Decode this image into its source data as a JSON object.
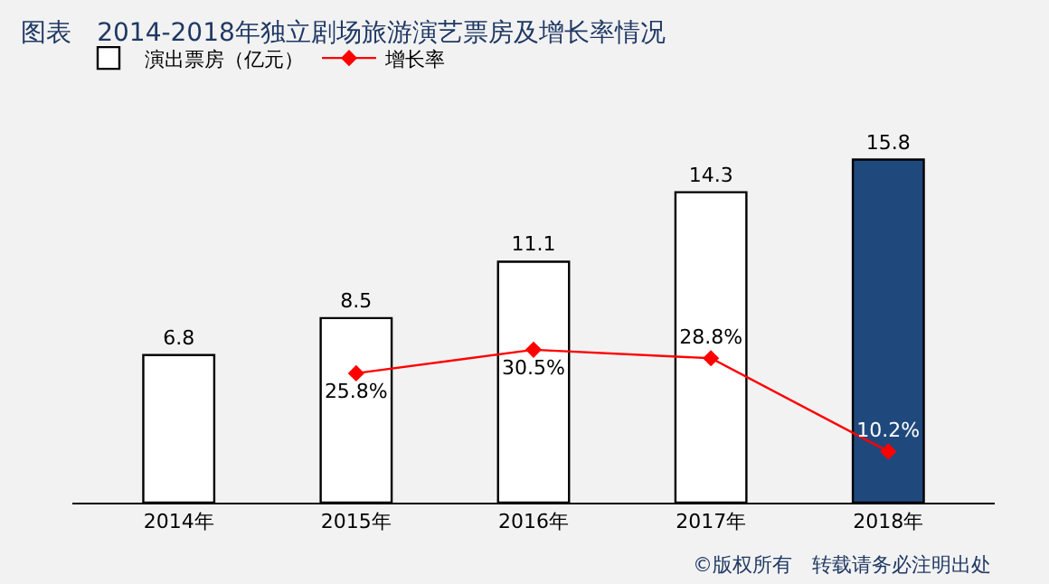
{
  "chart_data": {
    "type": "bar",
    "title": "图表　2014-2018年独立剧场旅游演艺票房及增长率情况",
    "categories": [
      "2014年",
      "2015年",
      "2016年",
      "2017年",
      "2018年"
    ],
    "series": [
      {
        "name": "演出票房（亿元）",
        "color": "#ffffff",
        "colors": [
          "#ffffff",
          "#ffffff",
          "#ffffff",
          "#ffffff",
          "#1f497d"
        ],
        "values": [
          6.8,
          8.5,
          11.1,
          14.3,
          15.8
        ],
        "value_labels": [
          "6.8",
          "8.5",
          "11.1",
          "14.3",
          "15.8"
        ]
      },
      {
        "name": "增长率",
        "type": "line",
        "axis": "y2",
        "color": "#ff0000",
        "values": [
          null,
          25.8,
          30.5,
          28.8,
          10.2
        ],
        "value_labels": [
          null,
          "25.8%",
          "30.5%",
          "28.8%",
          "10.2%"
        ]
      }
    ],
    "tick_labels": "x",
    "grid": false,
    "legend": "top left",
    "marker": "diamond",
    "annotations": [
      "©版权所有　转载请务必注明出处"
    ]
  }
}
